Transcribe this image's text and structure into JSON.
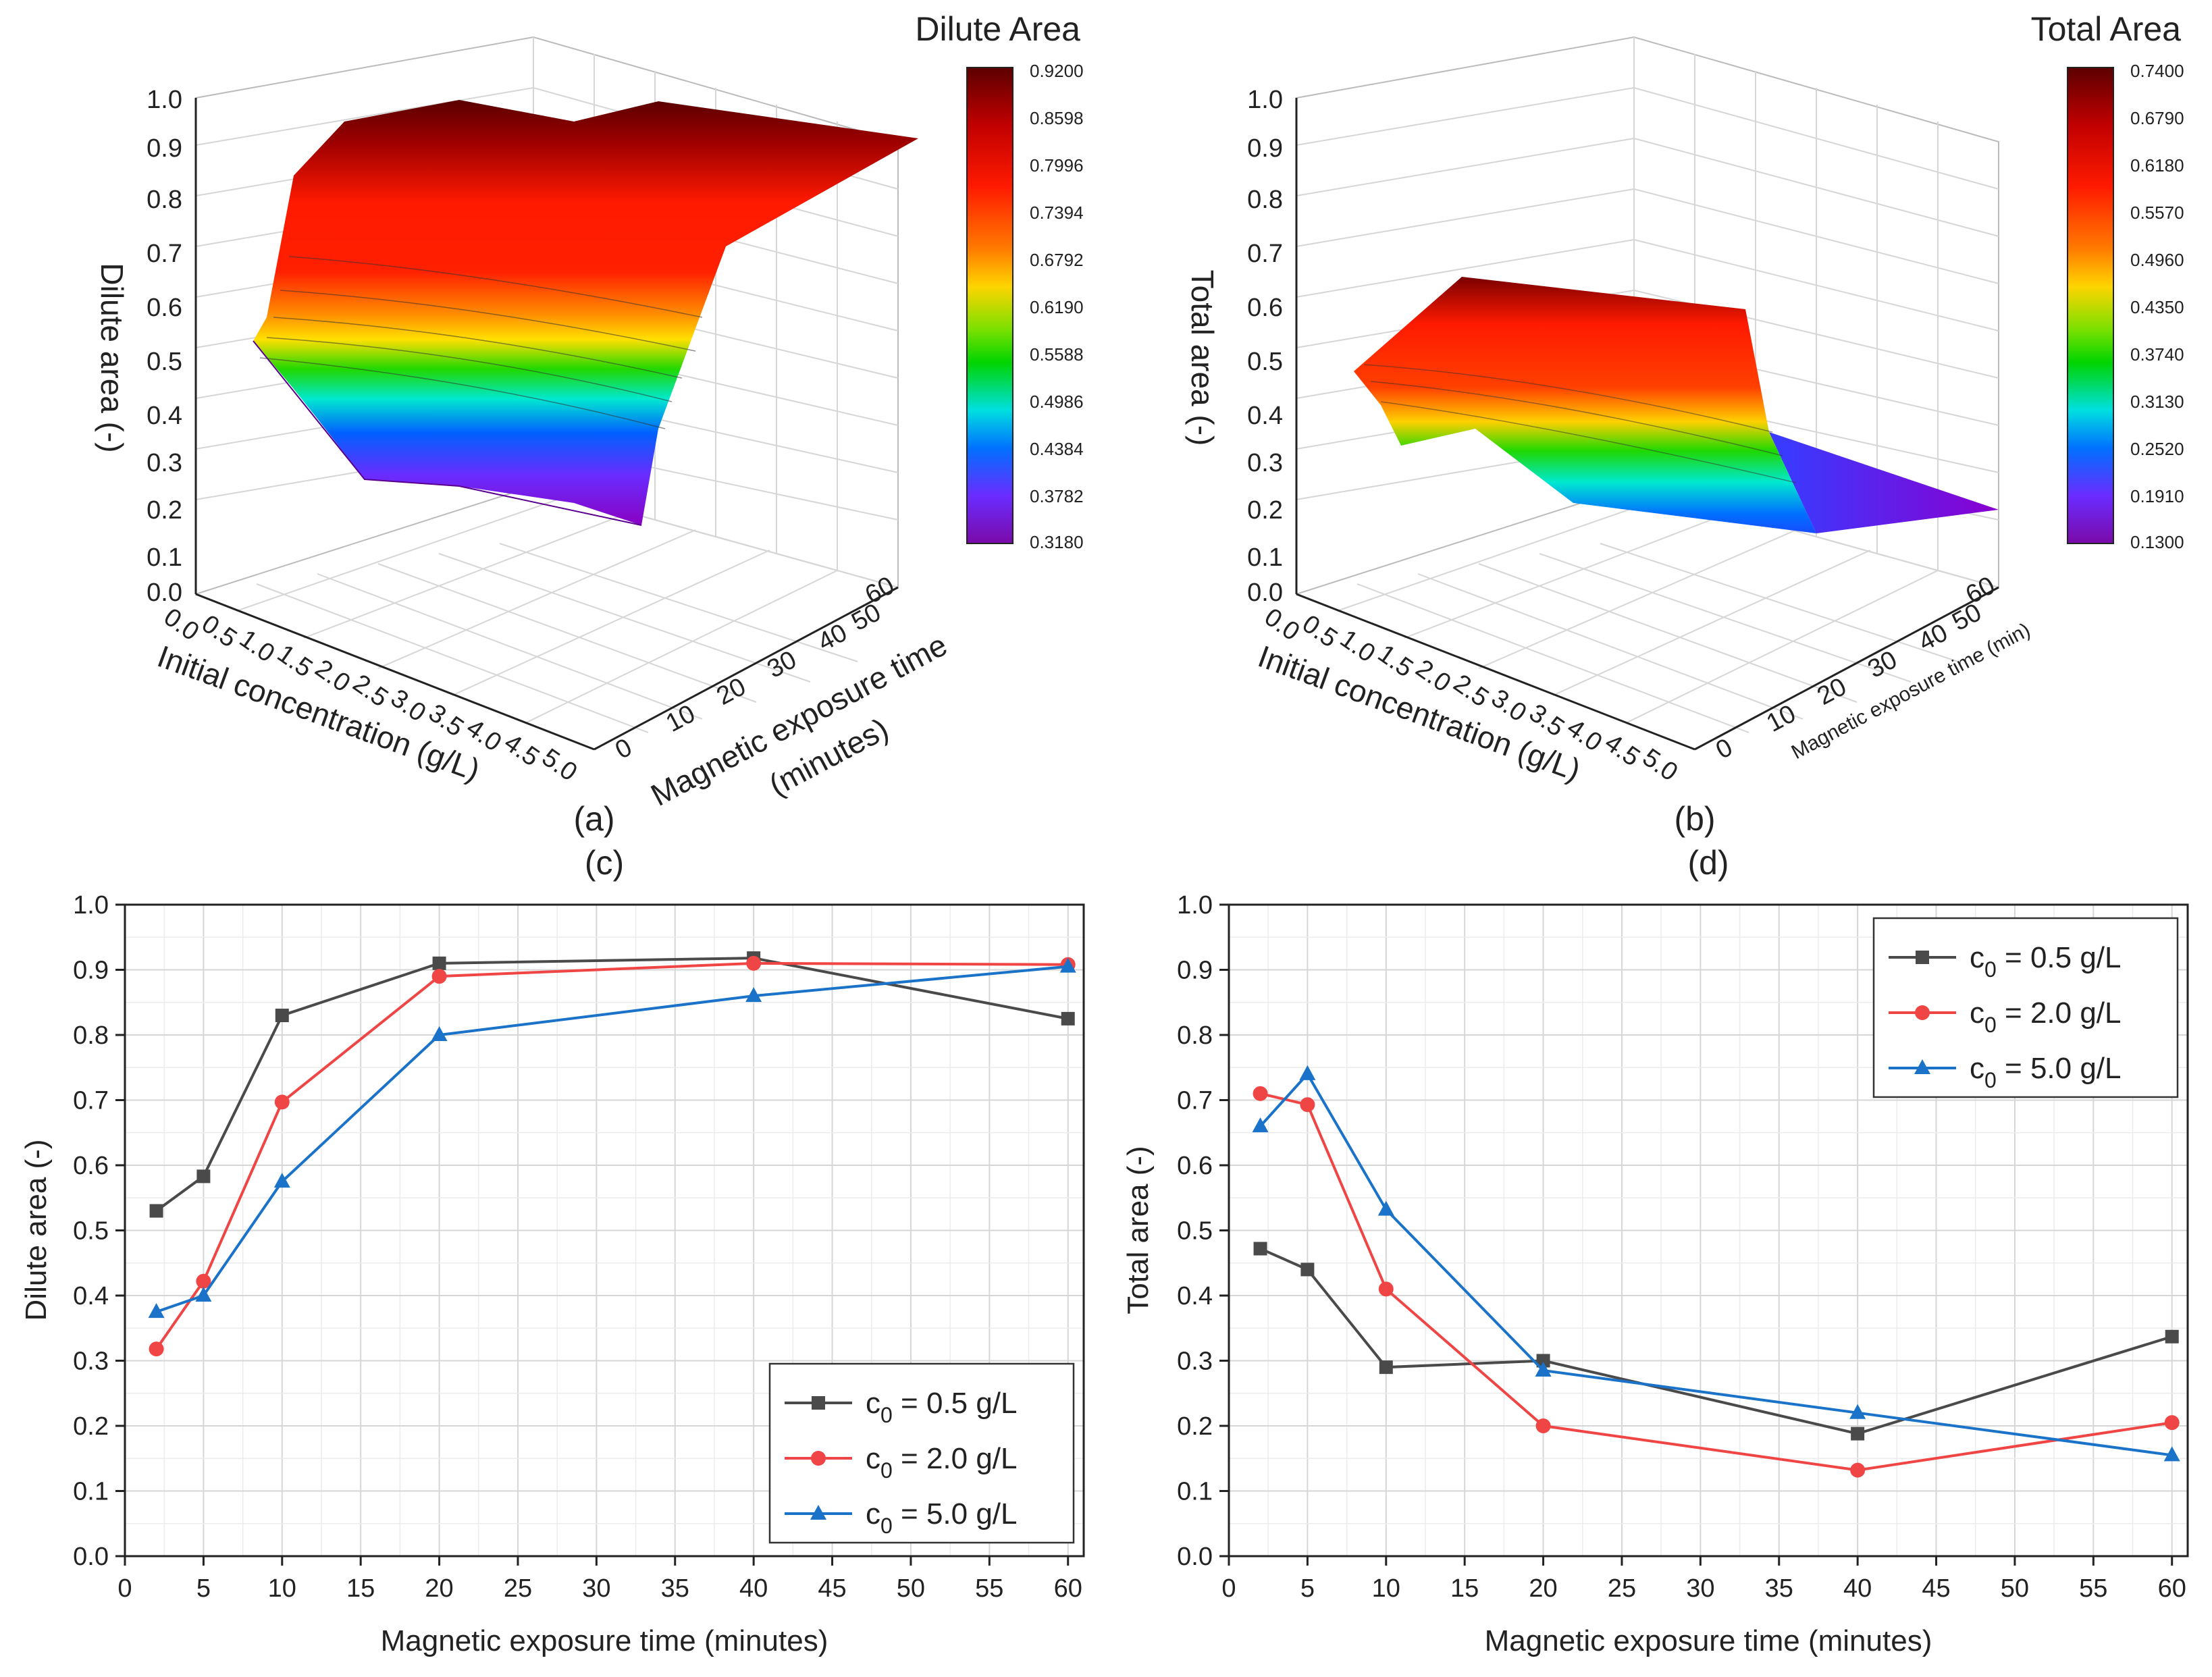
{
  "chart_data": [
    {
      "panel": "(a)",
      "type": "surface3d",
      "colorbar_title": "Dilute Area",
      "colorbar_ticks": [
        "0.9200",
        "0.8598",
        "0.7996",
        "0.7394",
        "0.6792",
        "0.6190",
        "0.5588",
        "0.4986",
        "0.4384",
        "0.3782",
        "0.3180"
      ],
      "zlabel": "Dilute area (-)",
      "xlabel": "Initial concentration (g/L)",
      "ylabel": "Magnetic exposure time",
      "ylabel_line2": "(minutes)",
      "z_ticks": [
        "0.0",
        "0.1",
        "0.2",
        "0.3",
        "0.4",
        "0.5",
        "0.6",
        "0.7",
        "0.8",
        "0.9",
        "1.0"
      ],
      "x_ticks": [
        "0.0",
        "0.5",
        "1.0",
        "1.5",
        "2.0",
        "2.5",
        "3.0",
        "3.5",
        "4.0",
        "4.5",
        "5.0"
      ],
      "y_ticks": [
        "0",
        "10",
        "20",
        "30",
        "40",
        "50",
        "60"
      ]
    },
    {
      "panel": "(b)",
      "type": "surface3d",
      "colorbar_title": "Total Area",
      "colorbar_ticks": [
        "0.7400",
        "0.6790",
        "0.6180",
        "0.5570",
        "0.4960",
        "0.4350",
        "0.3740",
        "0.3130",
        "0.2520",
        "0.1910",
        "0.1300"
      ],
      "zlabel": "Total area (-)",
      "xlabel": "Initial concentration (g/L)",
      "ylabel": "Magnetic exposure time (min)",
      "z_ticks": [
        "0.0",
        "0.1",
        "0.2",
        "0.3",
        "0.4",
        "0.5",
        "0.6",
        "0.7",
        "0.8",
        "0.9",
        "1.0"
      ],
      "x_ticks": [
        "0.0",
        "0.5",
        "1.0",
        "1.5",
        "2.0",
        "2.5",
        "3.0",
        "3.5",
        "4.0",
        "4.5",
        "5.0"
      ],
      "y_ticks": [
        "0",
        "10",
        "20",
        "30",
        "40",
        "50",
        "60"
      ]
    },
    {
      "panel": "(c)",
      "type": "line",
      "xlabel": "Magnetic exposure time (minutes)",
      "ylabel": "Dilute area (-)",
      "xlim": [
        0,
        61
      ],
      "ylim": [
        0,
        1
      ],
      "x_ticks": [
        0,
        5,
        10,
        15,
        20,
        25,
        30,
        35,
        40,
        45,
        50,
        55,
        60
      ],
      "y_ticks": [
        "0.0",
        "0.1",
        "0.2",
        "0.3",
        "0.4",
        "0.5",
        "0.6",
        "0.7",
        "0.8",
        "0.9",
        "1.0"
      ],
      "legend_position": "bottom-right",
      "x": [
        2,
        5,
        10,
        20,
        40,
        60
      ],
      "series": [
        {
          "name": "c",
          "sub": "0",
          "suffix": " = 0.5 g/L",
          "color": "#4a4a4a",
          "marker": "square",
          "values": [
            0.53,
            0.583,
            0.83,
            0.91,
            0.918,
            0.825
          ]
        },
        {
          "name": "c",
          "sub": "0",
          "suffix": " = 2.0 g/L",
          "color": "#f04545",
          "marker": "circle",
          "values": [
            0.318,
            0.422,
            0.697,
            0.89,
            0.91,
            0.908
          ]
        },
        {
          "name": "c",
          "sub": "0",
          "suffix": " = 5.0 g/L",
          "color": "#1a73c8",
          "marker": "triangle",
          "values": [
            0.375,
            0.4,
            0.575,
            0.8,
            0.86,
            0.905
          ]
        }
      ]
    },
    {
      "panel": "(d)",
      "type": "line",
      "xlabel": "Magnetic exposure time (minutes)",
      "ylabel": "Total area (-)",
      "xlim": [
        0,
        61
      ],
      "ylim": [
        0,
        1
      ],
      "x_ticks": [
        0,
        5,
        10,
        15,
        20,
        25,
        30,
        35,
        40,
        45,
        50,
        55,
        60
      ],
      "y_ticks": [
        "0.0",
        "0.1",
        "0.2",
        "0.3",
        "0.4",
        "0.5",
        "0.6",
        "0.7",
        "0.8",
        "0.9",
        "1.0"
      ],
      "legend_position": "top-right",
      "x": [
        2,
        5,
        10,
        20,
        40,
        60
      ],
      "series": [
        {
          "name": "c",
          "sub": "0",
          "suffix": " = 0.5 g/L",
          "color": "#4a4a4a",
          "marker": "square",
          "values": [
            0.472,
            0.44,
            0.29,
            0.3,
            0.188,
            0.337
          ]
        },
        {
          "name": "c",
          "sub": "0",
          "suffix": " = 2.0 g/L",
          "color": "#f04545",
          "marker": "circle",
          "values": [
            0.71,
            0.693,
            0.41,
            0.2,
            0.132,
            0.205
          ]
        },
        {
          "name": "c",
          "sub": "0",
          "suffix": " = 5.0 g/L",
          "color": "#1a73c8",
          "marker": "triangle",
          "values": [
            0.66,
            0.74,
            0.532,
            0.285,
            0.22,
            0.155
          ]
        }
      ]
    }
  ]
}
